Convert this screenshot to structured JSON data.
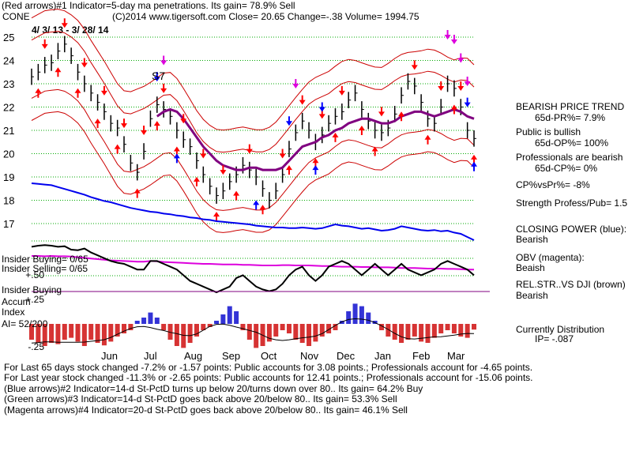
{
  "header": {
    "line1": "(Red arrows)#1 Indicator=5-day ma penetrations. Its gain= 78.9% Sell",
    "line2_symbol": "CONE",
    "line2_info": "(C)2014 www.tigersoft.com    Close=  20.65  Change=-.38 Volume= 1994.75",
    "date_range": "4/ 3/ 13 - 3/ 28/ 14"
  },
  "annotations": {
    "s7": "S7",
    "insider_buying_count": "Insider Buying= 0/65",
    "insider_selling_count": "Insider Selling= 0/65",
    "insider_buying": "Insider Buying",
    "accum_index": "Accum\nIndex",
    "ai": "AI= 52/200"
  },
  "right_panel": {
    "trend_title": "BEARISH PRICE TREND",
    "pr": "65d-PR%= 7.9%",
    "public": "Public is bullish",
    "op": "65d-OP%= 100%",
    "professionals": "Professionals are bearish",
    "cp": "65d-CP%= 0%",
    "cpvspr": "CP%vsPr%= -8%",
    "strength": "Strength Profess/Pub= 1.5",
    "closing_power": "CLOSING POWER (blue):",
    "closing_power_val": "Bearish",
    "obv": "OBV (magenta):",
    "obv_val": "Beaish",
    "relstr": "REL.STR..VS DJI (brown)",
    "relstr_val": "Bearish",
    "distribution": "Currently Distribution",
    "ip": "IP= -.087"
  },
  "footer": {
    "line1": "For Last 65 days stock changed -7.2% or -1.57 points:  Public accounts for  3.08 points.;  Professionals account for -4.65 points.",
    "line2": "For Last year stock changed -11.3% or -2.65 points:  Public accounts for  12.41 points.;  Professionals account for -15.06 points.",
    "line3": "(Blue arrows)#2 Indicator=14-d St-PctD turns up below 20/turns down over 80.. Its gain= 64.2% Buy",
    "line4": "(Green arrows)#3 Indicator=14-d St-PctD goes back above 20/below 80.. Its gain= 53.3% Sell",
    "line5": "(Magenta arrows)#4 Indicator=20-d St-PctD goes back above 20/below 80.. Its gain= 46.1% Sell"
  },
  "colors": {
    "price": "#000000",
    "band": "#cc0000",
    "ma": "#800080",
    "closing_power": "#0000ee",
    "obv": "#dd00dd",
    "relstr": "#000000",
    "grid": "#00aa00",
    "sell_arrow": "#ff0000",
    "buy_arrow": "#0000ff",
    "accum_pos": "#0000cc",
    "accum_neg": "#cc0000"
  },
  "chart_data": {
    "type": "line",
    "title": "CONE",
    "xlabel": "",
    "ylabel": "",
    "ylim": [
      16.5,
      25.5
    ],
    "yticks": [
      17,
      18,
      19,
      20,
      21,
      22,
      23,
      24,
      25
    ],
    "months": [
      "Jun",
      "Jul",
      "Aug",
      "Sep",
      "Oct",
      "Nov",
      "Dec",
      "Jan",
      "Feb",
      "Mar"
    ],
    "accum_ticks": [
      "+.50",
      "+.25",
      "-.25"
    ],
    "series": [
      {
        "key": "price_close",
        "values": [
          23.3,
          23.5,
          23.8,
          23.9,
          24.4,
          24.7,
          24.2,
          23.5,
          23.0,
          22.6,
          22.2,
          21.8,
          21.3,
          21.1,
          20.4,
          19.6,
          19.2,
          20.1,
          21.5,
          22.1,
          21.9,
          21.6,
          21.0,
          20.6,
          20.3,
          19.7,
          19.1,
          18.6,
          18.2,
          18.4,
          18.8,
          19.1,
          19.5,
          19.3,
          19.0,
          18.5,
          18.0,
          18.4,
          19.1,
          20.2,
          20.9,
          21.4,
          21.0,
          20.5,
          20.8,
          21.3,
          21.6,
          21.8,
          22.3,
          22.6,
          21.9,
          21.4,
          21.0,
          20.9,
          21.1,
          21.7,
          22.5,
          23.1,
          22.9,
          22.2,
          21.5,
          21.3,
          22.0,
          23.0,
          22.8,
          22.0,
          21.0,
          20.65
        ]
      },
      {
        "key": "ma_50",
        "name": "",
        "values": [
          null,
          null,
          null,
          null,
          null,
          null,
          null,
          null,
          null,
          null,
          null,
          null,
          null,
          null,
          null,
          null,
          null,
          null,
          null,
          21.6,
          21.8,
          21.9,
          21.8,
          21.5,
          21.1,
          20.7,
          20.3,
          20.0,
          19.7,
          19.5,
          19.4,
          19.3,
          19.3,
          19.4,
          19.4,
          19.3,
          19.3,
          19.3,
          19.4,
          19.7,
          20.0,
          20.3,
          20.4,
          20.5,
          20.7,
          20.8,
          21.0,
          21.1,
          21.3,
          21.4,
          21.5,
          21.5,
          21.4,
          21.3,
          21.3,
          21.4,
          21.6,
          21.7,
          21.8,
          21.8,
          21.7,
          21.6,
          21.7,
          21.8,
          21.9,
          21.8,
          21.6,
          21.5
        ]
      },
      {
        "key": "closing_power",
        "name": "CLOSING POWER (blue)",
        "values": [
          0.8,
          0.79,
          0.78,
          0.77,
          0.74,
          0.71,
          0.68,
          0.65,
          0.62,
          0.58,
          0.55,
          0.52,
          0.5,
          0.47,
          0.44,
          0.41,
          0.39,
          0.37,
          0.35,
          0.34,
          0.32,
          0.31,
          0.29,
          0.28,
          0.26,
          0.25,
          0.23,
          0.22,
          0.2,
          0.19,
          0.18,
          0.17,
          0.16,
          0.15,
          0.13,
          0.12,
          0.11,
          0.1,
          0.1,
          0.09,
          0.09,
          0.1,
          0.09,
          0.08,
          0.09,
          0.12,
          0.15,
          0.13,
          0.12,
          0.1,
          0.08,
          0.09,
          0.07,
          0.05,
          0.06,
          0.08,
          0.12,
          0.1,
          0.08,
          0.06,
          0.05,
          0.06,
          0.04,
          0.05,
          0.02,
          0.0,
          -0.05,
          -0.1
        ]
      },
      {
        "key": "obv",
        "name": "OBV (magenta)",
        "values": [
          0.8,
          0.8,
          0.79,
          0.8,
          0.79,
          0.79,
          0.78,
          0.76,
          0.74,
          0.72,
          0.7,
          0.68,
          0.66,
          0.65,
          0.64,
          0.63,
          0.62,
          0.62,
          0.64,
          0.63,
          0.61,
          0.6,
          0.59,
          0.58,
          0.57,
          0.56,
          0.55,
          0.55,
          0.54,
          0.53,
          0.53,
          0.53,
          0.52,
          0.52,
          0.51,
          0.5,
          0.5,
          0.5,
          0.51,
          0.51,
          0.5,
          0.5,
          0.5,
          0.49,
          0.48,
          0.48,
          0.47,
          0.46,
          0.46,
          0.46,
          0.45,
          0.45,
          0.44,
          0.44,
          0.44,
          0.43,
          0.42,
          0.42,
          0.42,
          0.41,
          0.4,
          0.4,
          0.4,
          0.39,
          0.39,
          0.38,
          0.37,
          0.37
        ]
      },
      {
        "key": "relstr",
        "name": "REL.STR..VS DJI (brown)",
        "values": [
          0.8,
          0.82,
          0.83,
          0.82,
          0.8,
          0.81,
          0.75,
          0.74,
          0.77,
          0.7,
          0.65,
          0.6,
          0.55,
          0.52,
          0.5,
          0.45,
          0.4,
          0.4,
          0.55,
          0.55,
          0.5,
          0.45,
          0.4,
          0.3,
          0.2,
          0.15,
          0.1,
          0.05,
          0.0,
          0.05,
          0.1,
          0.25,
          0.3,
          0.2,
          0.1,
          0.05,
          0.02,
          0.05,
          0.15,
          0.3,
          0.4,
          0.45,
          0.3,
          0.2,
          0.3,
          0.45,
          0.5,
          0.55,
          0.5,
          0.4,
          0.3,
          0.4,
          0.5,
          0.4,
          0.3,
          0.4,
          0.5,
          0.4,
          0.35,
          0.3,
          0.35,
          0.4,
          0.5,
          0.55,
          0.5,
          0.45,
          0.4,
          0.3
        ]
      },
      {
        "key": "accum_index",
        "name": "",
        "values": [
          -0.25,
          -0.3,
          -0.35,
          -0.3,
          -0.32,
          -0.25,
          -0.22,
          -0.28,
          -0.35,
          -0.25,
          -0.3,
          -0.34,
          -0.28,
          -0.2,
          -0.15,
          -0.1,
          0.05,
          0.1,
          0.18,
          0.1,
          -0.1,
          -0.25,
          -0.35,
          -0.38,
          -0.3,
          -0.2,
          -0.1,
          -0.05,
          0.05,
          0.15,
          0.28,
          0.2,
          -0.1,
          -0.25,
          -0.38,
          -0.35,
          -0.28,
          -0.2,
          -0.1,
          -0.15,
          -0.25,
          -0.3,
          -0.35,
          -0.28,
          -0.2,
          -0.15,
          -0.1,
          0.05,
          0.2,
          0.32,
          0.28,
          0.18,
          0.05,
          -0.1,
          -0.2,
          -0.25,
          -0.3,
          -0.25,
          -0.2,
          -0.28,
          -0.3,
          -0.22,
          -0.15,
          -0.1,
          -0.15,
          -0.2,
          -0.22,
          -0.09
        ]
      }
    ],
    "sell_arrows": [
      2,
      5,
      8,
      11,
      14,
      17,
      20,
      23,
      26,
      29,
      33,
      38,
      41,
      44,
      47,
      53,
      58,
      62,
      65
    ],
    "buy_arrows": [
      1,
      4,
      7,
      10,
      13,
      16,
      19,
      22,
      25,
      28,
      31,
      35,
      39,
      43,
      46,
      50,
      52,
      56,
      60,
      64,
      67
    ],
    "blue_sell_arrows": [
      19,
      39,
      44,
      66
    ],
    "blue_buy_arrows": [
      22,
      34,
      43,
      67
    ],
    "magenta_arrows": [
      20,
      40,
      63,
      64,
      65,
      66
    ],
    "grid": true
  }
}
